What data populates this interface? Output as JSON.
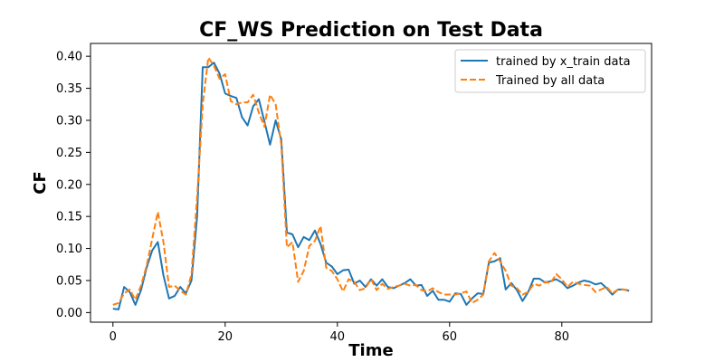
{
  "chart_data": {
    "type": "line",
    "title": "CF_WS Prediction on Test Data",
    "xlabel": "Time",
    "ylabel": "CF",
    "xlim": [
      -4,
      96
    ],
    "ylim": [
      -0.015,
      0.42
    ],
    "xticks": [
      0,
      20,
      40,
      60,
      80
    ],
    "xtick_labels": [
      "0",
      "20",
      "40",
      "60",
      "80"
    ],
    "yticks": [
      0.0,
      0.05,
      0.1,
      0.15,
      0.2,
      0.25,
      0.3,
      0.35,
      0.4
    ],
    "ytick_labels": [
      "0.00",
      "0.05",
      "0.10",
      "0.15",
      "0.20",
      "0.25",
      "0.30",
      "0.35",
      "0.40"
    ],
    "grid": false,
    "legend": "top-right",
    "x": [
      0,
      1,
      2,
      3,
      4,
      5,
      6,
      7,
      8,
      9,
      10,
      11,
      12,
      13,
      14,
      15,
      16,
      17,
      18,
      19,
      20,
      21,
      22,
      23,
      24,
      25,
      26,
      27,
      28,
      29,
      30,
      31,
      32,
      33,
      34,
      35,
      36,
      37,
      38,
      39,
      40,
      41,
      42,
      43,
      44,
      45,
      46,
      47,
      48,
      49,
      50,
      51,
      52,
      53,
      54,
      55,
      56,
      57,
      58,
      59,
      60,
      61,
      62,
      63,
      64,
      65,
      66,
      67,
      68,
      69,
      70,
      71,
      72,
      73,
      74,
      75,
      76,
      77,
      78,
      79,
      80,
      81,
      82,
      83,
      84,
      85,
      86,
      87,
      88,
      89,
      90,
      91,
      92
    ],
    "series": [
      {
        "name": "trained by x_train data",
        "color": "#1f77b4",
        "style": "solid",
        "values": [
          0.006,
          0.005,
          0.04,
          0.032,
          0.012,
          0.035,
          0.07,
          0.097,
          0.11,
          0.058,
          0.022,
          0.026,
          0.04,
          0.03,
          0.05,
          0.15,
          0.383,
          0.383,
          0.39,
          0.373,
          0.342,
          0.338,
          0.335,
          0.305,
          0.292,
          0.322,
          0.333,
          0.298,
          0.262,
          0.3,
          0.27,
          0.125,
          0.122,
          0.102,
          0.118,
          0.113,
          0.128,
          0.107,
          0.078,
          0.072,
          0.06,
          0.066,
          0.067,
          0.045,
          0.05,
          0.04,
          0.052,
          0.042,
          0.052,
          0.04,
          0.038,
          0.042,
          0.046,
          0.052,
          0.042,
          0.043,
          0.026,
          0.034,
          0.02,
          0.02,
          0.017,
          0.03,
          0.029,
          0.012,
          0.022,
          0.03,
          0.029,
          0.078,
          0.08,
          0.085,
          0.036,
          0.046,
          0.035,
          0.018,
          0.032,
          0.053,
          0.053,
          0.047,
          0.049,
          0.052,
          0.047,
          0.038,
          0.042,
          0.047,
          0.05,
          0.048,
          0.044,
          0.046,
          0.038,
          0.028,
          0.036,
          0.036,
          0.034
        ]
      },
      {
        "name": "Trained by all data",
        "color": "#ff7f0e",
        "style": "dashed",
        "values": [
          0.012,
          0.015,
          0.03,
          0.036,
          0.02,
          0.042,
          0.073,
          0.115,
          0.157,
          0.11,
          0.04,
          0.042,
          0.034,
          0.028,
          0.06,
          0.18,
          0.325,
          0.398,
          0.385,
          0.365,
          0.372,
          0.33,
          0.325,
          0.328,
          0.328,
          0.34,
          0.312,
          0.29,
          0.34,
          0.325,
          0.262,
          0.102,
          0.11,
          0.048,
          0.065,
          0.104,
          0.112,
          0.135,
          0.07,
          0.065,
          0.052,
          0.033,
          0.052,
          0.048,
          0.035,
          0.038,
          0.052,
          0.035,
          0.045,
          0.037,
          0.04,
          0.042,
          0.045,
          0.042,
          0.043,
          0.035,
          0.033,
          0.038,
          0.032,
          0.028,
          0.028,
          0.028,
          0.03,
          0.033,
          0.015,
          0.02,
          0.028,
          0.08,
          0.093,
          0.08,
          0.065,
          0.042,
          0.038,
          0.028,
          0.032,
          0.045,
          0.042,
          0.048,
          0.046,
          0.06,
          0.052,
          0.04,
          0.048,
          0.045,
          0.043,
          0.042,
          0.032,
          0.036,
          0.04,
          0.03,
          0.036,
          0.036,
          0.035
        ]
      }
    ]
  }
}
